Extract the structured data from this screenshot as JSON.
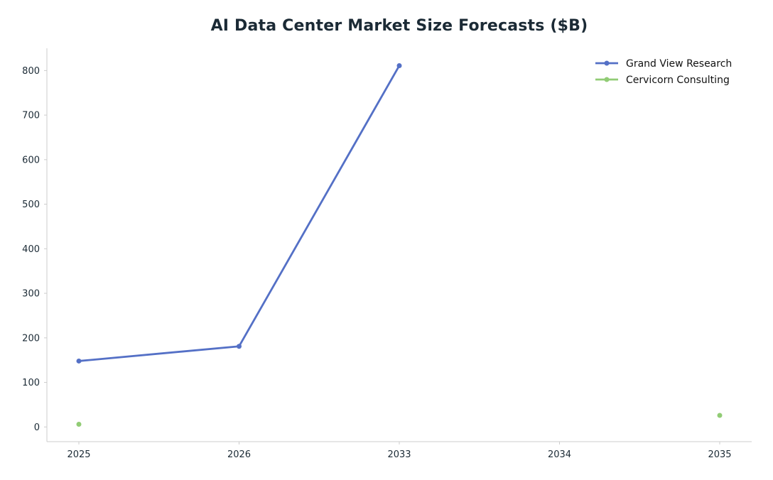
{
  "chart_data": {
    "type": "line",
    "title": "AI Data Center Market Size Forecasts ($B)",
    "xlabel": "",
    "ylabel": "",
    "categories": [
      "2025",
      "2026",
      "2033",
      "2034",
      "2035"
    ],
    "yticks": [
      "0",
      "100",
      "200",
      "300",
      "400",
      "500",
      "600",
      "700",
      "800"
    ],
    "ylim": [
      -33,
      850
    ],
    "grid": false,
    "legend_position": "top-right",
    "series": [
      {
        "name": "Grand View Research",
        "color": "#5470c6",
        "values": [
          148,
          181,
          811,
          null,
          null
        ]
      },
      {
        "name": "Cervicorn Consulting",
        "color": "#91cc75",
        "values": [
          6,
          null,
          null,
          null,
          26
        ]
      }
    ],
    "axis_color": "#cccccc"
  }
}
